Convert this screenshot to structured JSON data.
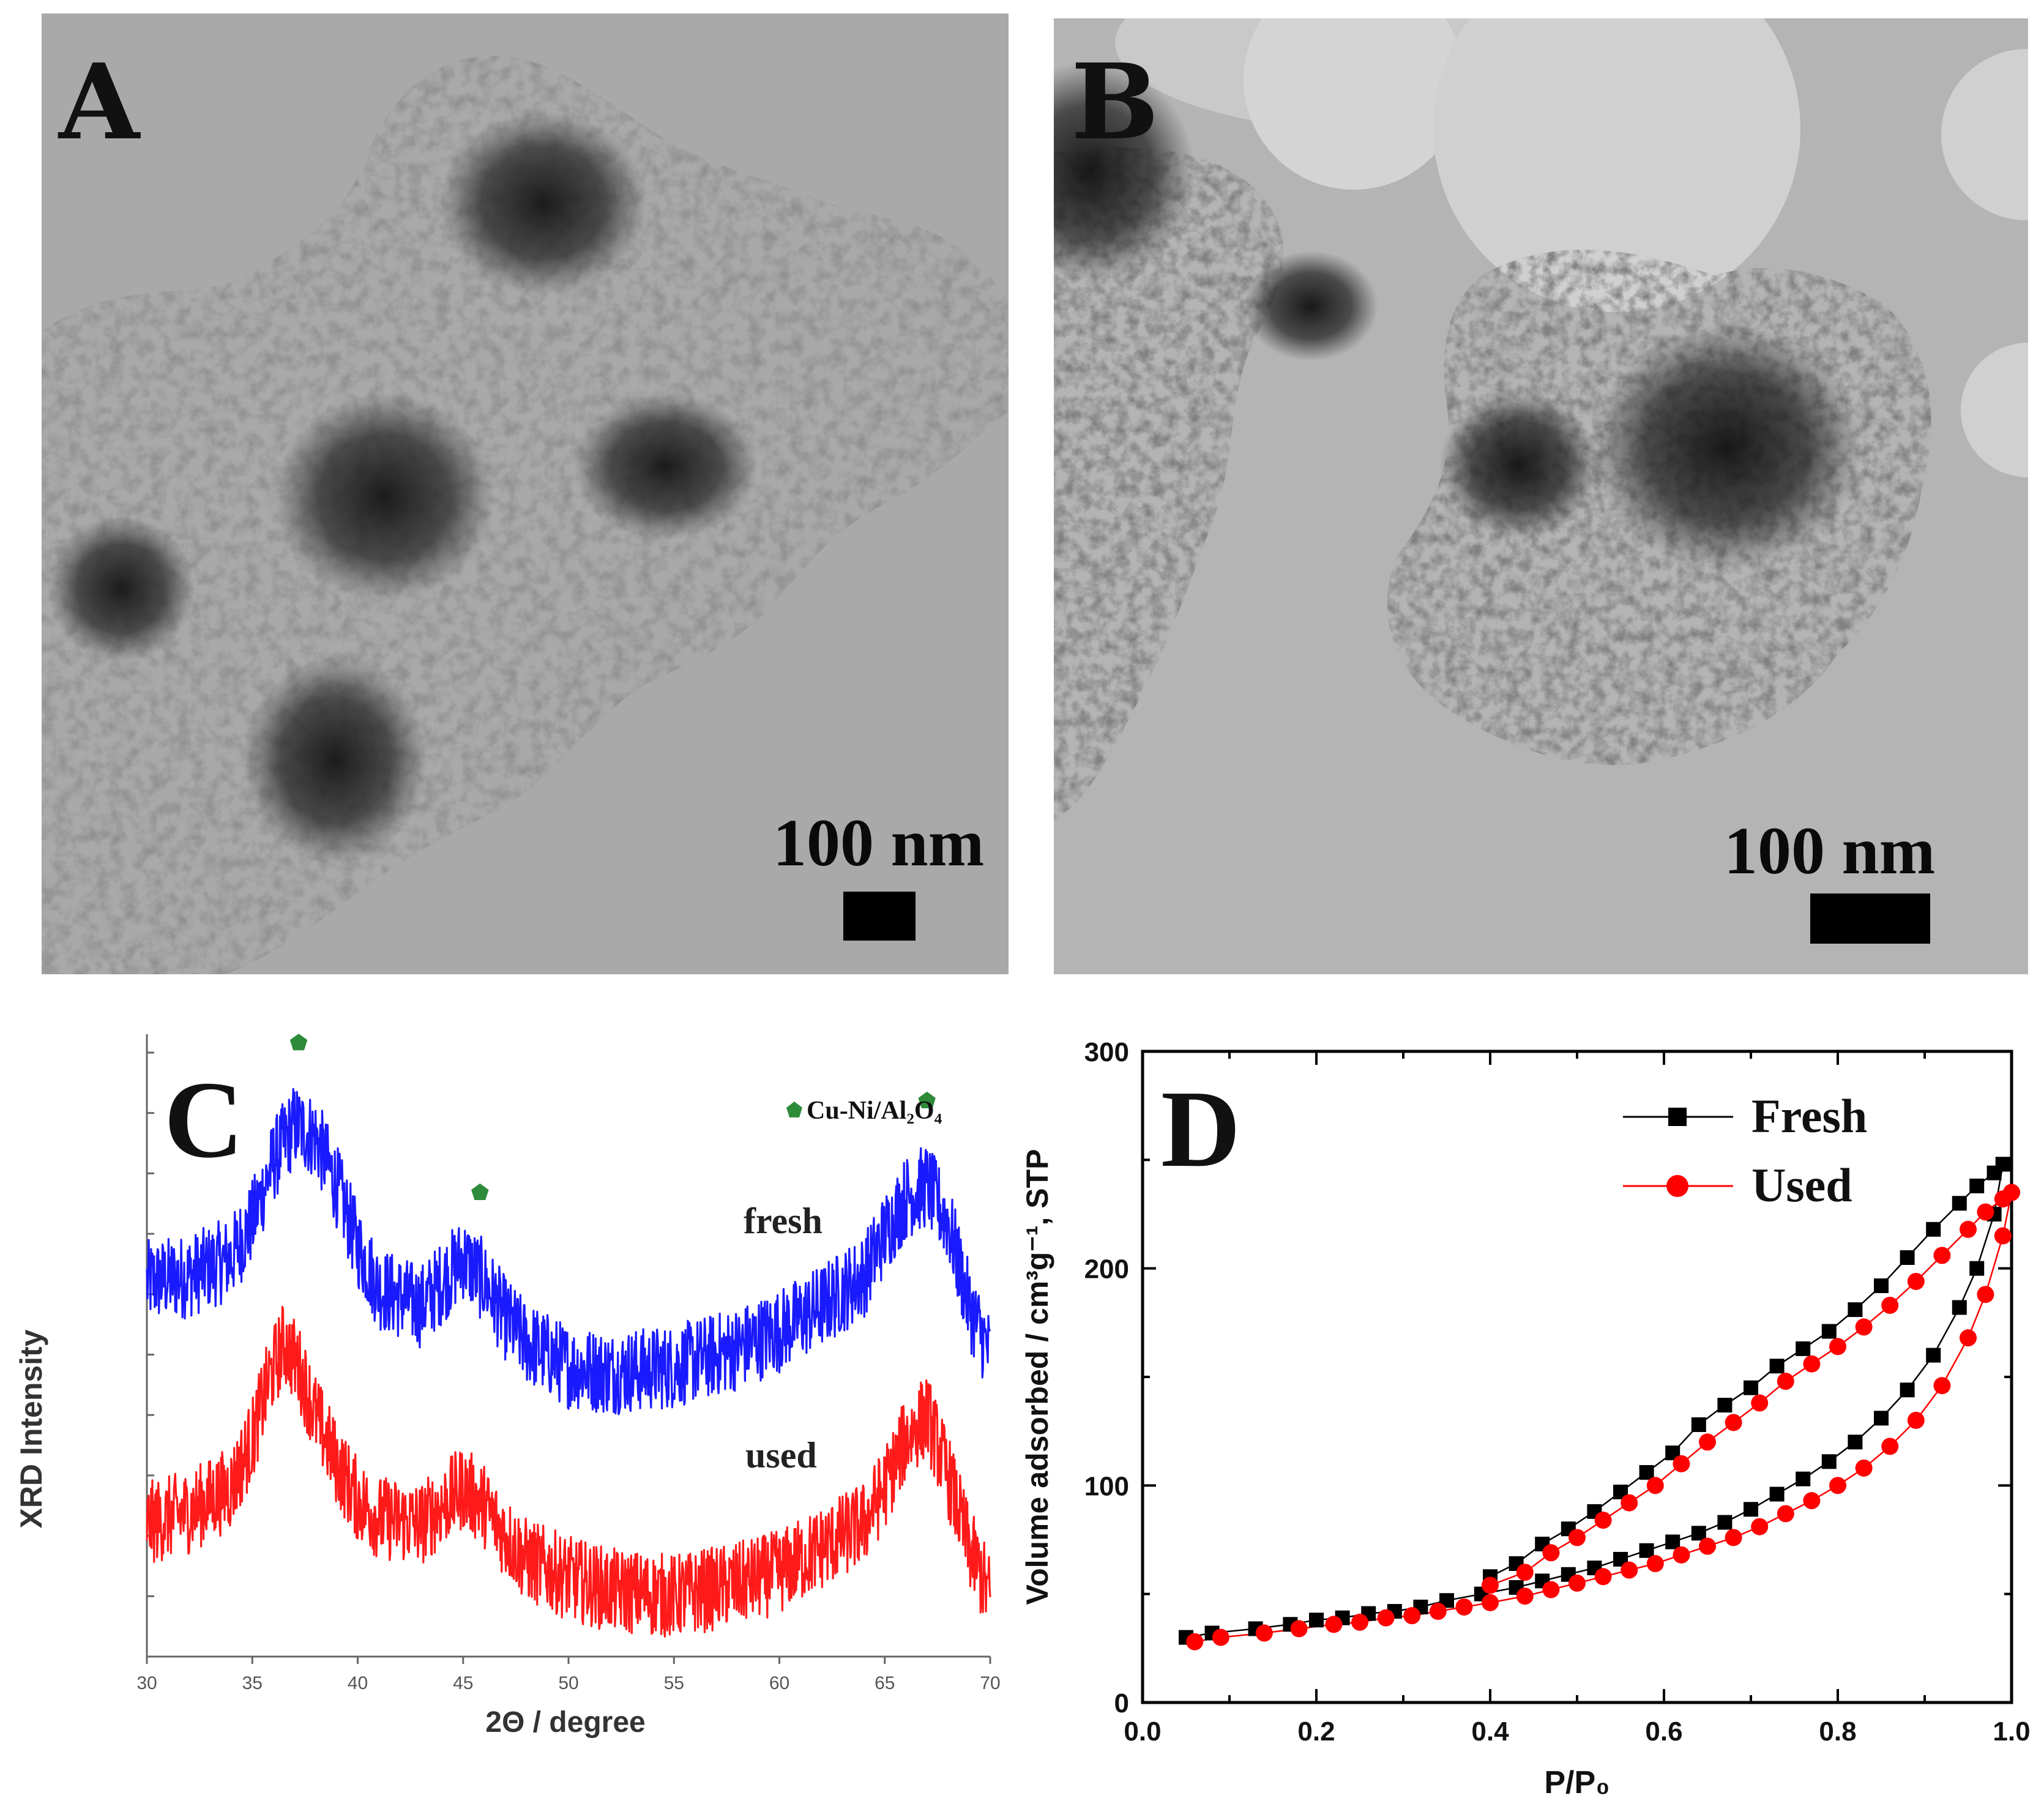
{
  "figure": {
    "panel_a": {
      "label": "A",
      "scale_text": "100 nm"
    },
    "panel_b": {
      "label": "B",
      "scale_text": "100 nm"
    }
  },
  "colors": {
    "fresh_xrd": "#1a1aff",
    "used_xrd": "#ff1a1a",
    "fresh_bet": "#000000",
    "used_bet": "#ff0000",
    "marker": "#2e8b3a"
  },
  "chart_data": [
    {
      "panel": "C",
      "type": "line",
      "title": "C",
      "xlabel": "2Θ / degree",
      "ylabel": "XRD Intensity",
      "xlim": [
        30,
        70
      ],
      "x_ticks": [
        "30",
        "35",
        "40",
        "45",
        "50",
        "55",
        "60",
        "65",
        "70"
      ],
      "legend": {
        "entry": "Cu-Ni/Al₂O₄",
        "symbol": "pentagon",
        "position": "top-right"
      },
      "peak_markers": [
        37.2,
        45.8,
        67.0
      ],
      "series": [
        {
          "name": "fresh",
          "profile_x": [
            30,
            32,
            34,
            35,
            36,
            37,
            38,
            39,
            40,
            41,
            43,
            44,
            45,
            46,
            47,
            48,
            50,
            52,
            55,
            58,
            60,
            62,
            64,
            65,
            66,
            67,
            68,
            69,
            70
          ],
          "profile_y": [
            0.62,
            0.63,
            0.66,
            0.72,
            0.82,
            0.88,
            0.86,
            0.78,
            0.68,
            0.61,
            0.58,
            0.62,
            0.66,
            0.62,
            0.56,
            0.52,
            0.48,
            0.47,
            0.48,
            0.51,
            0.54,
            0.58,
            0.63,
            0.7,
            0.76,
            0.78,
            0.72,
            0.58,
            0.5
          ],
          "noise": 0.07
        },
        {
          "name": "used",
          "profile_x": [
            30,
            32,
            34,
            35,
            35.8,
            36.5,
            37.2,
            38,
            39,
            40,
            41,
            43,
            44,
            45,
            46,
            47,
            48,
            50,
            52,
            55,
            58,
            60,
            62,
            64,
            65,
            66,
            67,
            68,
            69,
            70
          ],
          "profile_y": [
            0.22,
            0.24,
            0.28,
            0.36,
            0.46,
            0.52,
            0.48,
            0.4,
            0.32,
            0.26,
            0.23,
            0.22,
            0.25,
            0.28,
            0.25,
            0.2,
            0.16,
            0.13,
            0.11,
            0.1,
            0.12,
            0.14,
            0.18,
            0.22,
            0.28,
            0.36,
            0.4,
            0.3,
            0.18,
            0.1
          ],
          "noise": 0.07
        }
      ]
    },
    {
      "panel": "D",
      "type": "line",
      "title": "D",
      "xlabel": "P/P₀",
      "ylabel": "Volume adsorbed / cm³g⁻¹, STP",
      "xlim": [
        0.0,
        1.0
      ],
      "ylim": [
        0,
        300
      ],
      "x_ticks": [
        "0.0",
        "0.2",
        "0.4",
        "0.6",
        "0.8",
        "1.0"
      ],
      "y_ticks": [
        "0",
        "100",
        "200",
        "300"
      ],
      "legend_position": "top-right",
      "series": [
        {
          "name": "Fresh",
          "marker": "square",
          "adsorption": {
            "x": [
              0.05,
              0.08,
              0.13,
              0.17,
              0.2,
              0.23,
              0.26,
              0.29,
              0.32,
              0.35,
              0.39,
              0.43,
              0.46,
              0.49,
              0.52,
              0.55,
              0.58,
              0.61,
              0.64,
              0.67,
              0.7,
              0.73,
              0.76,
              0.79,
              0.82,
              0.85,
              0.88,
              0.91,
              0.94,
              0.96,
              0.98,
              0.99
            ],
            "y": [
              30,
              32,
              34,
              36,
              38,
              39,
              41,
              42,
              44,
              47,
              50,
              53,
              56,
              59,
              62,
              66,
              70,
              74,
              78,
              83,
              89,
              96,
              103,
              111,
              120,
              131,
              144,
              160,
              182,
              200,
              225,
              248
            ]
          },
          "desorption": {
            "x": [
              0.99,
              0.98,
              0.96,
              0.94,
              0.91,
              0.88,
              0.85,
              0.82,
              0.79,
              0.76,
              0.73,
              0.7,
              0.67,
              0.64,
              0.61,
              0.58,
              0.55,
              0.52,
              0.49,
              0.46,
              0.43,
              0.4
            ],
            "y": [
              248,
              244,
              238,
              230,
              218,
              205,
              192,
              181,
              171,
              163,
              155,
              145,
              137,
              128,
              115,
              106,
              97,
              88,
              80,
              73,
              64,
              58
            ]
          }
        },
        {
          "name": "Used",
          "marker": "circle",
          "adsorption": {
            "x": [
              0.06,
              0.09,
              0.14,
              0.18,
              0.22,
              0.25,
              0.28,
              0.31,
              0.34,
              0.37,
              0.4,
              0.44,
              0.47,
              0.5,
              0.53,
              0.56,
              0.59,
              0.62,
              0.65,
              0.68,
              0.71,
              0.74,
              0.77,
              0.8,
              0.83,
              0.86,
              0.89,
              0.92,
              0.95,
              0.97,
              0.99,
              1.0
            ],
            "y": [
              28,
              30,
              32,
              34,
              36,
              37,
              39,
              40,
              42,
              44,
              46,
              49,
              52,
              55,
              58,
              61,
              64,
              68,
              72,
              76,
              81,
              87,
              93,
              100,
              108,
              118,
              130,
              146,
              168,
              188,
              215,
              235
            ]
          },
          "desorption": {
            "x": [
              1.0,
              0.99,
              0.97,
              0.95,
              0.92,
              0.89,
              0.86,
              0.83,
              0.8,
              0.77,
              0.74,
              0.71,
              0.68,
              0.65,
              0.62,
              0.59,
              0.56,
              0.53,
              0.5,
              0.47,
              0.44,
              0.4
            ],
            "y": [
              235,
              232,
              226,
              218,
              206,
              194,
              183,
              173,
              164,
              156,
              148,
              138,
              129,
              120,
              110,
              100,
              92,
              84,
              76,
              69,
              60,
              54
            ]
          }
        }
      ]
    }
  ]
}
